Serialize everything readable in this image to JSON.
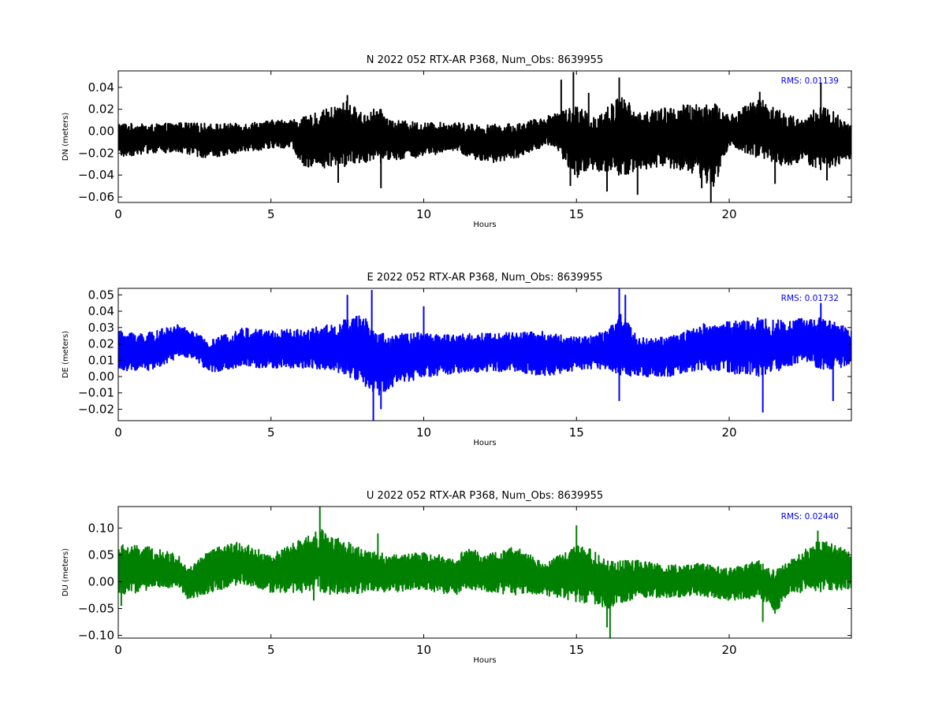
{
  "chart_data": [
    {
      "type": "line",
      "title": "N 2022 052 RTX-AR  P368, Num_Obs: 8639955",
      "xlabel": "Hours",
      "ylabel": "DN (meters)",
      "xlim": [
        0,
        24
      ],
      "ylim": [
        -0.065,
        0.055
      ],
      "xticks": [
        0,
        5,
        10,
        15,
        20
      ],
      "yticks": [
        -0.06,
        -0.04,
        -0.02,
        0.0,
        0.02,
        0.04
      ],
      "ytick_labels": [
        "−0.06",
        "−0.04",
        "−0.02",
        "0.00",
        "0.02",
        "0.04"
      ],
      "annotation": "RMS:  0.01139",
      "color": "#000000",
      "grid": false,
      "series": [
        {
          "x": [
            0,
            1,
            2,
            3,
            4,
            5,
            5.7,
            6,
            7,
            7.5,
            8,
            8.5,
            9,
            10,
            11,
            12,
            13,
            14,
            14.3,
            15,
            15.5,
            16,
            16.5,
            17,
            18,
            19,
            19.5,
            20,
            21,
            22,
            22.5,
            23,
            24
          ],
          "center": [
            -0.008,
            -0.007,
            -0.006,
            -0.009,
            -0.006,
            -0.003,
            -0.002,
            -0.01,
            -0.006,
            -0.002,
            -0.006,
            -0.004,
            -0.008,
            -0.008,
            -0.005,
            -0.012,
            -0.009,
            0.0,
            0.002,
            -0.01,
            -0.012,
            -0.008,
            -0.004,
            -0.009,
            -0.006,
            -0.008,
            -0.012,
            0.0,
            0.003,
            -0.01,
            -0.008,
            -0.006,
            -0.01
          ],
          "amp": [
            0.016,
            0.013,
            0.014,
            0.016,
            0.013,
            0.013,
            0.013,
            0.022,
            0.028,
            0.03,
            0.022,
            0.026,
            0.018,
            0.016,
            0.013,
            0.018,
            0.016,
            0.013,
            0.016,
            0.034,
            0.026,
            0.03,
            0.038,
            0.026,
            0.028,
            0.034,
            0.04,
            0.014,
            0.028,
            0.024,
            0.02,
            0.032,
            0.016
          ],
          "spikes": [
            [
              7.2,
              -0.047
            ],
            [
              7.5,
              0.033
            ],
            [
              8.6,
              -0.052
            ],
            [
              14.5,
              0.047
            ],
            [
              14.9,
              0.054
            ],
            [
              14.8,
              -0.05
            ],
            [
              15.4,
              0.035
            ],
            [
              16.4,
              0.049
            ],
            [
              16.0,
              -0.055
            ],
            [
              17.0,
              -0.058
            ],
            [
              19.4,
              -0.065
            ],
            [
              19.1,
              -0.052
            ],
            [
              21.0,
              0.036
            ],
            [
              23.0,
              0.044
            ],
            [
              23.2,
              -0.045
            ],
            [
              21.5,
              -0.048
            ]
          ]
        }
      ]
    },
    {
      "type": "line",
      "title": "E 2022 052 RTX-AR  P368, Num_Obs: 8639955",
      "xlabel": "Hours",
      "ylabel": "DE (meters)",
      "xlim": [
        0,
        24
      ],
      "ylim": [
        -0.027,
        0.054
      ],
      "xticks": [
        0,
        5,
        10,
        15,
        20
      ],
      "yticks": [
        -0.02,
        -0.01,
        0.0,
        0.01,
        0.02,
        0.03,
        0.04,
        0.05
      ],
      "ytick_labels": [
        "−0.02",
        "−0.01",
        "0.00",
        "0.01",
        "0.02",
        "0.03",
        "0.04",
        "0.05"
      ],
      "annotation": "RMS:  0.01732",
      "color": "#0000ff",
      "grid": false,
      "series": [
        {
          "x": [
            0,
            1,
            2,
            2.5,
            3,
            4,
            5,
            6,
            7,
            7.5,
            8,
            8.5,
            9,
            10,
            11,
            12,
            13,
            14,
            15,
            16,
            16.5,
            17,
            18,
            19,
            20,
            21,
            22,
            22.5,
            23,
            24
          ],
          "center": [
            0.016,
            0.015,
            0.022,
            0.019,
            0.012,
            0.018,
            0.017,
            0.017,
            0.018,
            0.018,
            0.016,
            0.008,
            0.01,
            0.013,
            0.014,
            0.015,
            0.015,
            0.014,
            0.014,
            0.016,
            0.02,
            0.012,
            0.012,
            0.018,
            0.018,
            0.018,
            0.02,
            0.023,
            0.02,
            0.018
          ],
          "amp": [
            0.012,
            0.012,
            0.01,
            0.008,
            0.01,
            0.012,
            0.012,
            0.012,
            0.014,
            0.018,
            0.022,
            0.02,
            0.016,
            0.014,
            0.012,
            0.012,
            0.012,
            0.014,
            0.01,
            0.012,
            0.02,
            0.012,
            0.012,
            0.014,
            0.016,
            0.018,
            0.014,
            0.014,
            0.016,
            0.012
          ],
          "spikes": [
            [
              7.5,
              0.05
            ],
            [
              8.3,
              0.053
            ],
            [
              8.35,
              -0.027
            ],
            [
              8.6,
              -0.02
            ],
            [
              10.0,
              0.043
            ],
            [
              16.4,
              0.055
            ],
            [
              16.6,
              0.05
            ],
            [
              16.4,
              -0.015
            ],
            [
              21.1,
              -0.022
            ],
            [
              23.0,
              0.045
            ],
            [
              23.4,
              -0.015
            ]
          ]
        }
      ]
    },
    {
      "type": "line",
      "title": "U 2022 052 RTX-AR  P368, Num_Obs: 8639955",
      "xlabel": "Hours",
      "ylabel": "DU (meters)",
      "xlim": [
        0,
        24
      ],
      "ylim": [
        -0.105,
        0.14
      ],
      "xticks": [
        0,
        5,
        10,
        15,
        20
      ],
      "yticks": [
        -0.1,
        -0.05,
        0.0,
        0.05,
        0.1
      ],
      "ytick_labels": [
        "−0.10",
        "−0.05",
        "0.00",
        "0.05",
        "0.10"
      ],
      "annotation": "RMS:  0.02440",
      "color": "#008000",
      "grid": false,
      "series": [
        {
          "x": [
            0,
            1,
            2,
            2.3,
            3,
            4,
            5,
            6,
            6.6,
            7,
            7.5,
            8,
            9,
            10,
            11,
            11.5,
            12,
            13,
            14,
            15,
            15.5,
            16,
            17,
            18,
            19,
            20,
            21,
            21.5,
            22,
            23,
            24
          ],
          "center": [
            0.02,
            0.025,
            0.02,
            -0.005,
            0.02,
            0.035,
            0.015,
            0.03,
            0.04,
            0.03,
            0.025,
            0.02,
            0.015,
            0.02,
            0.01,
            0.025,
            0.015,
            0.02,
            0.005,
            0.015,
            0.01,
            -0.005,
            0.005,
            0.0,
            0.005,
            -0.005,
            0.005,
            -0.02,
            0.01,
            0.03,
            0.02
          ],
          "amp": [
            0.05,
            0.04,
            0.03,
            0.03,
            0.04,
            0.04,
            0.035,
            0.05,
            0.06,
            0.055,
            0.05,
            0.04,
            0.035,
            0.035,
            0.035,
            0.04,
            0.035,
            0.045,
            0.03,
            0.055,
            0.05,
            0.045,
            0.035,
            0.03,
            0.03,
            0.03,
            0.035,
            0.04,
            0.03,
            0.05,
            0.035
          ],
          "spikes": [
            [
              6.6,
              0.14
            ],
            [
              6.7,
              0.095
            ],
            [
              6.4,
              -0.035
            ],
            [
              15.0,
              0.105
            ],
            [
              16.1,
              -0.105
            ],
            [
              16.0,
              -0.085
            ],
            [
              21.1,
              -0.075
            ],
            [
              22.9,
              0.095
            ],
            [
              8.5,
              0.09
            ],
            [
              0.1,
              -0.045
            ]
          ]
        }
      ]
    }
  ]
}
